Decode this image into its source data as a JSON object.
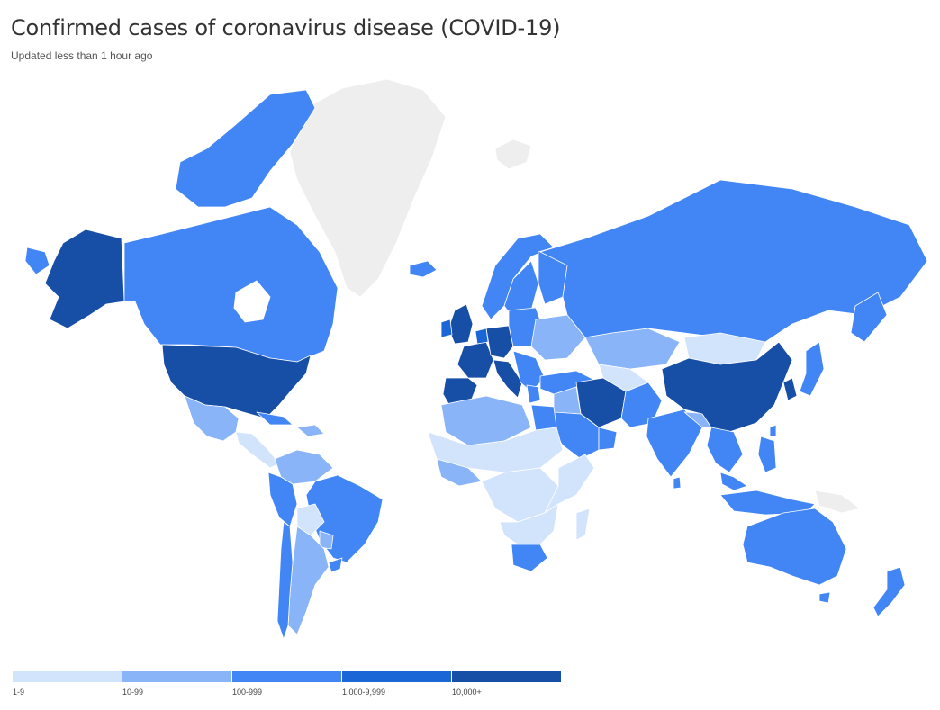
{
  "header": {
    "title": "Confirmed cases of coronavirus disease (COVID-19)",
    "subtitle": "Updated less than 1 hour ago"
  },
  "colors": {
    "nodata": "#eeeeee",
    "bin1": "#d2e3fc",
    "bin2": "#8ab4f8",
    "bin3": "#4285f4",
    "bin4": "#1a66d6",
    "bin5": "#174ea6"
  },
  "legend": {
    "items": [
      {
        "label": "1-9",
        "color": "#d2e3fc"
      },
      {
        "label": "10-99",
        "color": "#8ab4f8"
      },
      {
        "label": "100-999",
        "color": "#4285f4"
      },
      {
        "label": "1,000-9,999",
        "color": "#1a66d6"
      },
      {
        "label": "10,000+",
        "color": "#174ea6"
      }
    ]
  }
}
